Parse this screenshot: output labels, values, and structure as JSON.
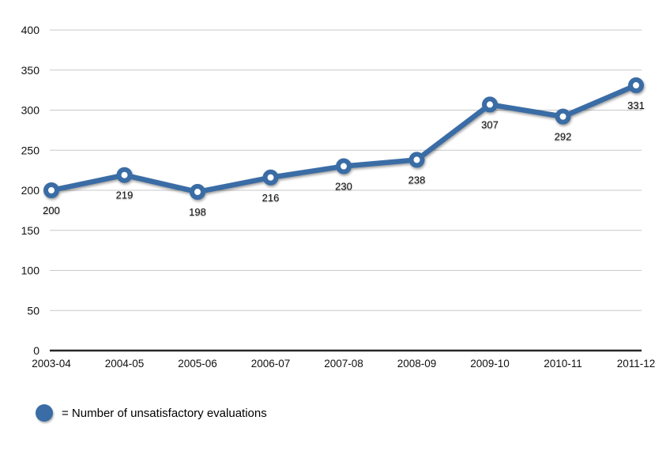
{
  "chart_data": {
    "type": "line",
    "title": "",
    "categories": [
      "2003-04",
      "2004-05",
      "2005-06",
      "2006-07",
      "2007-08",
      "2008-09",
      "2009-10",
      "2010-11",
      "2011-12"
    ],
    "series": [
      {
        "name": "Number of unsatisfactory evaluations",
        "values": [
          200,
          219,
          198,
          216,
          230,
          238,
          307,
          292,
          331
        ]
      }
    ],
    "data_labels_shown": true,
    "xlabel": "",
    "ylabel": "",
    "ylim": [
      0,
      400
    ],
    "yticks": [
      0,
      50,
      100,
      150,
      200,
      250,
      300,
      350,
      400
    ],
    "grid": "horizontal",
    "legend_position": "bottom-left",
    "colors": {
      "line": "#3A6CA5",
      "marker_fill": "#FFFFFF",
      "grid": "#C9C9C9",
      "axis_baseline": "#262626",
      "text": "#111111"
    }
  },
  "legend": {
    "label": "= Number of unsatisfactory evaluations"
  }
}
